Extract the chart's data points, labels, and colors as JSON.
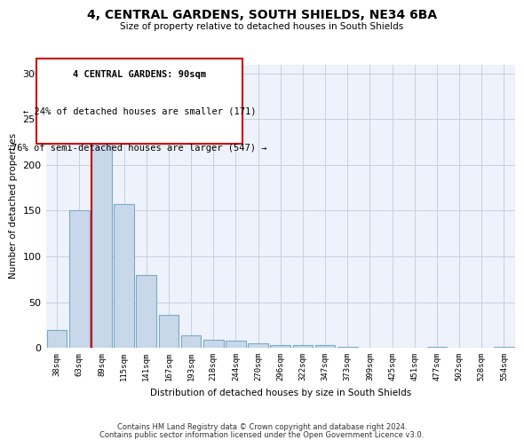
{
  "title": "4, CENTRAL GARDENS, SOUTH SHIELDS, NE34 6BA",
  "subtitle": "Size of property relative to detached houses in South Shields",
  "xlabel": "Distribution of detached houses by size in South Shields",
  "ylabel": "Number of detached properties",
  "footer_line1": "Contains HM Land Registry data © Crown copyright and database right 2024.",
  "footer_line2": "Contains public sector information licensed under the Open Government Licence v3.0.",
  "bar_color": "#c8d8ea",
  "bar_edge_color": "#7aaac8",
  "annotation_box_color": "#ffffff",
  "annotation_border_color": "#cc0000",
  "red_line_color": "#cc0000",
  "grid_color": "#c8cfe0",
  "background_color": "#eef2fa",
  "categories": [
    "38sqm",
    "63sqm",
    "89sqm",
    "115sqm",
    "141sqm",
    "167sqm",
    "193sqm",
    "218sqm",
    "244sqm",
    "270sqm",
    "296sqm",
    "322sqm",
    "347sqm",
    "373sqm",
    "399sqm",
    "425sqm",
    "451sqm",
    "477sqm",
    "502sqm",
    "528sqm",
    "554sqm"
  ],
  "values": [
    19,
    150,
    235,
    157,
    80,
    36,
    14,
    9,
    8,
    5,
    3,
    3,
    3,
    1,
    0,
    0,
    0,
    1,
    0,
    0,
    1
  ],
  "property_bar_index": 2,
  "annotation_text_line1": "4 CENTRAL GARDENS: 90sqm",
  "annotation_text_line2": "← 24% of detached houses are smaller (171)",
  "annotation_text_line3": "76% of semi-detached houses are larger (547) →",
  "ylim": [
    0,
    310
  ],
  "yticks": [
    0,
    50,
    100,
    150,
    200,
    250,
    300
  ]
}
